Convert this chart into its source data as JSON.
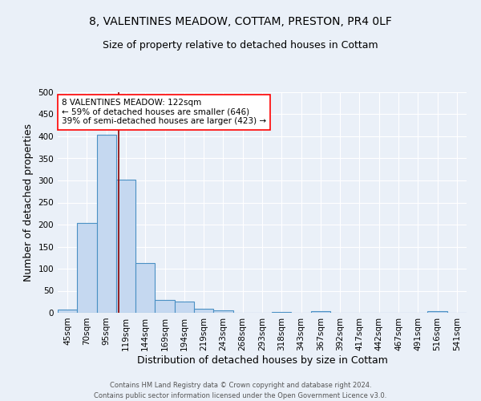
{
  "title1": "8, VALENTINES MEADOW, COTTAM, PRESTON, PR4 0LF",
  "title2": "Size of property relative to detached houses in Cottam",
  "xlabel": "Distribution of detached houses by size in Cottam",
  "ylabel": "Number of detached properties",
  "footer1": "Contains HM Land Registry data © Crown copyright and database right 2024.",
  "footer2": "Contains public sector information licensed under the Open Government Licence v3.0.",
  "bin_labels": [
    "45sqm",
    "70sqm",
    "95sqm",
    "119sqm",
    "144sqm",
    "169sqm",
    "194sqm",
    "219sqm",
    "243sqm",
    "268sqm",
    "293sqm",
    "318sqm",
    "343sqm",
    "367sqm",
    "392sqm",
    "417sqm",
    "442sqm",
    "467sqm",
    "491sqm",
    "516sqm",
    "541sqm"
  ],
  "bar_values": [
    8,
    204,
    403,
    302,
    112,
    30,
    26,
    9,
    5,
    0,
    0,
    2,
    0,
    3,
    0,
    0,
    0,
    0,
    0,
    4,
    0
  ],
  "bar_color": "#c5d8f0",
  "bar_edge_color": "#4a90c4",
  "property_line_color": "#8b0000",
  "annotation_text": "8 VALENTINES MEADOW: 122sqm\n← 59% of detached houses are smaller (646)\n39% of semi-detached houses are larger (423) →",
  "annotation_box_color": "white",
  "annotation_box_edge_color": "red",
  "ylim": [
    0,
    500
  ],
  "yticks": [
    0,
    50,
    100,
    150,
    200,
    250,
    300,
    350,
    400,
    450,
    500
  ],
  "background_color": "#eaf0f8",
  "grid_color": "white",
  "title1_fontsize": 10,
  "title2_fontsize": 9,
  "axis_label_fontsize": 9,
  "tick_fontsize": 7.5,
  "annotation_fontsize": 7.5,
  "footer_fontsize": 6,
  "prop_line_index": 2.62
}
